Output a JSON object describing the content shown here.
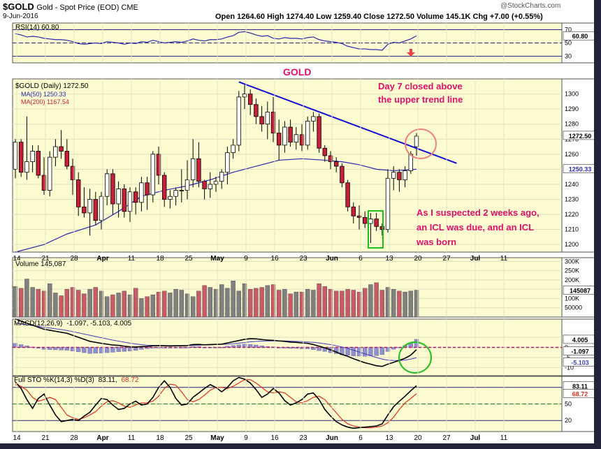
{
  "header": {
    "symbol": "$GOLD",
    "description": "Gold - Spot Price (EOD)  CME",
    "date": "9-Jun-2016",
    "watermark": "@StockCharts.com",
    "quote": "Open 1264.60  High 1274.40  Low 1259.40  Close 1272.50  Volume 145.1K  Chg +7.00 (+0.55%)"
  },
  "colors": {
    "panel_bg": "#fdfbd0",
    "up": "#ffffff",
    "down": "#c81e3c",
    "ma50": "#2a2ab0",
    "ma200": "#c81e3c",
    "trend": "#1010d0",
    "annotation": "#e0106a",
    "vol_up": "#808080",
    "vol_down": "#c85a6a"
  },
  "annotations": {
    "gold_label": "GOLD",
    "day7_line1": "Day 7 closed above",
    "day7_line2": "the upper trend line",
    "icl_line1": "As I suspected 2 weeks ago,",
    "icl_line2": "an ICL was due, and an ICL",
    "icl_line3": "was born"
  },
  "panels": {
    "rsi": {
      "label": "RSI(14) 60.80",
      "value_badge": "60.80"
    },
    "price": {
      "label": "$GOLD (Daily) 1272.50",
      "ma50_label": "MA(50) 1250.33",
      "ma200_label": "MA(200) 1167.54",
      "last_badge": "1272.50",
      "ma_badge": "1250.33"
    },
    "volume": {
      "label": "Volume 145,087",
      "badge": "145087"
    },
    "macd": {
      "label_prefix": "MACD(12,26,9)",
      "label_vals": "-1.097, -5.103, 4.005",
      "badge1": "4.005",
      "badge2": "-1.097",
      "badge3": "-5.103"
    },
    "sto": {
      "label_prefix": "Full STO %K(14,3) %D(3)",
      "label_k": "83.11,",
      "label_d": "68.72",
      "badge_k": "83.11",
      "badge_d": "68.72"
    }
  },
  "chart_data": [
    {
      "type": "candlestick",
      "title": "$GOLD (Daily)",
      "x_tick_labels": [
        "14",
        "21",
        "28",
        "Apr",
        "11",
        "18",
        "25",
        "May",
        "9",
        "16",
        "23",
        "Jun",
        "6",
        "13",
        "20",
        "27",
        "Jul",
        "11"
      ],
      "ylim": [
        1195,
        1310
      ],
      "y_ticks": [
        1200,
        1210,
        1220,
        1230,
        1240,
        1250,
        1260,
        1270,
        1280,
        1290,
        1300
      ],
      "candles": [
        [
          1250,
          1270,
          1244,
          1268
        ],
        [
          1268,
          1270,
          1245,
          1248
        ],
        [
          1248,
          1285,
          1243,
          1255
        ],
        [
          1255,
          1266,
          1248,
          1262
        ],
        [
          1262,
          1266,
          1244,
          1246
        ],
        [
          1246,
          1258,
          1233,
          1236
        ],
        [
          1236,
          1262,
          1232,
          1258
        ],
        [
          1258,
          1270,
          1252,
          1265
        ],
        [
          1265,
          1276,
          1257,
          1262
        ],
        [
          1262,
          1270,
          1250,
          1252
        ],
        [
          1252,
          1257,
          1233,
          1243
        ],
        [
          1243,
          1248,
          1219,
          1225
        ],
        [
          1225,
          1238,
          1218,
          1221
        ],
        [
          1221,
          1237,
          1206,
          1230
        ],
        [
          1230,
          1235,
          1213,
          1216
        ],
        [
          1216,
          1235,
          1210,
          1232
        ],
        [
          1232,
          1250,
          1226,
          1247
        ],
        [
          1247,
          1250,
          1220,
          1227
        ],
        [
          1227,
          1242,
          1218,
          1237
        ],
        [
          1237,
          1240,
          1218,
          1222
        ],
        [
          1222,
          1238,
          1215,
          1235
        ],
        [
          1235,
          1238,
          1220,
          1228
        ],
        [
          1228,
          1245,
          1222,
          1241
        ],
        [
          1241,
          1245,
          1223,
          1233
        ],
        [
          1233,
          1262,
          1228,
          1260
        ],
        [
          1260,
          1265,
          1240,
          1246
        ],
        [
          1246,
          1248,
          1225,
          1230
        ],
        [
          1230,
          1236,
          1224,
          1232
        ],
        [
          1232,
          1238,
          1226,
          1236
        ],
        [
          1236,
          1250,
          1228,
          1236
        ],
        [
          1236,
          1256,
          1230,
          1243
        ],
        [
          1243,
          1270,
          1238,
          1257
        ],
        [
          1257,
          1268,
          1238,
          1242
        ],
        [
          1242,
          1243,
          1230,
          1237
        ],
        [
          1237,
          1248,
          1231,
          1240
        ],
        [
          1240,
          1245,
          1235,
          1242
        ],
        [
          1242,
          1250,
          1237,
          1248
        ],
        [
          1248,
          1265,
          1240,
          1261
        ],
        [
          1261,
          1270,
          1257,
          1266
        ],
        [
          1266,
          1302,
          1262,
          1298
        ],
        [
          1298,
          1306,
          1290,
          1300
        ],
        [
          1300,
          1303,
          1286,
          1293
        ],
        [
          1293,
          1297,
          1280,
          1285
        ],
        [
          1285,
          1292,
          1275,
          1280
        ],
        [
          1280,
          1295,
          1270,
          1288
        ],
        [
          1288,
          1298,
          1268,
          1274
        ],
        [
          1274,
          1283,
          1256,
          1266
        ],
        [
          1266,
          1282,
          1261,
          1278
        ],
        [
          1278,
          1283,
          1265,
          1268
        ],
        [
          1268,
          1278,
          1263,
          1273
        ],
        [
          1273,
          1280,
          1262,
          1266
        ],
        [
          1266,
          1285,
          1263,
          1282
        ],
        [
          1282,
          1288,
          1275,
          1285
        ],
        [
          1285,
          1287,
          1261,
          1264
        ],
        [
          1264,
          1266,
          1255,
          1259
        ],
        [
          1259,
          1262,
          1250,
          1255
        ],
        [
          1255,
          1258,
          1248,
          1252
        ],
        [
          1252,
          1254,
          1238,
          1241
        ],
        [
          1241,
          1243,
          1222,
          1225
        ],
        [
          1225,
          1228,
          1214,
          1219
        ],
        [
          1219,
          1226,
          1210,
          1218
        ],
        [
          1218,
          1222,
          1211,
          1214
        ],
        [
          1214,
          1221,
          1201,
          1217
        ],
        [
          1217,
          1221,
          1209,
          1212
        ],
        [
          1212,
          1214,
          1206,
          1210
        ],
        [
          1210,
          1250,
          1208,
          1244
        ],
        [
          1244,
          1252,
          1236,
          1248
        ],
        [
          1248,
          1250,
          1235,
          1243
        ],
        [
          1243,
          1252,
          1238,
          1249
        ],
        [
          1249,
          1262,
          1247,
          1260
        ],
        [
          1265,
          1274,
          1259,
          1272
        ]
      ],
      "ma50": [
        [
          0,
          1195
        ],
        [
          5,
          1200
        ],
        [
          9,
          1207
        ],
        [
          14,
          1213
        ],
        [
          18,
          1222
        ],
        [
          22,
          1232
        ],
        [
          26,
          1236
        ],
        [
          30,
          1239
        ],
        [
          34,
          1243
        ],
        [
          38,
          1248
        ],
        [
          42,
          1252
        ],
        [
          46,
          1256
        ],
        [
          50,
          1257
        ],
        [
          54,
          1256
        ],
        [
          57,
          1255
        ],
        [
          60,
          1253
        ],
        [
          63,
          1250
        ],
        [
          66,
          1249
        ],
        [
          70,
          1250
        ]
      ],
      "trend_line": [
        [
          39,
          1308
        ],
        [
          77,
          1254
        ]
      ],
      "volume": {
        "ylim": [
          0,
          320000
        ],
        "y_ticks": [
          "300K",
          "250K",
          "200K",
          "150K",
          "100K",
          "50000"
        ],
        "values": [
          165,
          155,
          205,
          160,
          150,
          140,
          180,
          130,
          115,
          150,
          160,
          145,
          125,
          150,
          160,
          140,
          110,
          120,
          130,
          140,
          120,
          155,
          100,
          110,
          120,
          135,
          140,
          130,
          150,
          145,
          125,
          110,
          140,
          170,
          160,
          150,
          175,
          155,
          195,
          140,
          180,
          150,
          155,
          160,
          170,
          175,
          145,
          150,
          125,
          135,
          135,
          150,
          145,
          180,
          165,
          150,
          140,
          140,
          150,
          145,
          135,
          155,
          175,
          185,
          145,
          160,
          150,
          140,
          135,
          140,
          145
        ]
      },
      "rsi": {
        "ylim": [
          20,
          80
        ],
        "y_ticks": [
          70,
          50,
          30
        ],
        "values": [
          64,
          62,
          59,
          60,
          59,
          57,
          56,
          55,
          55,
          54,
          52,
          49,
          48,
          49,
          50,
          49,
          52,
          51,
          50,
          48,
          50,
          49,
          52,
          51,
          54,
          52,
          50,
          51,
          52,
          51,
          53,
          56,
          54,
          53,
          55,
          55,
          56,
          59,
          61,
          66,
          67,
          65,
          62,
          60,
          61,
          57,
          56,
          58,
          57,
          57,
          56,
          58,
          59,
          55,
          53,
          52,
          51,
          49,
          45,
          43,
          41,
          41,
          40,
          40,
          39,
          48,
          51,
          50,
          53,
          56,
          60.8
        ]
      },
      "macd": {
        "ylim": [
          -14,
          14
        ],
        "y_ticks": [
          5,
          0,
          -5,
          -10
        ],
        "macd": [
          14,
          13,
          12,
          11,
          10,
          9,
          8.5,
          8,
          7.5,
          7,
          6,
          5,
          4,
          3,
          2.5,
          2,
          1.6,
          1.2,
          1,
          0.6,
          0.3,
          0.2,
          0.4,
          0.5,
          0.8,
          0.9,
          0.8,
          0.7,
          0.8,
          0.8,
          0.9,
          1.4,
          1.5,
          1.3,
          1.4,
          1.5,
          1.6,
          2.2,
          2.8,
          3.4,
          4,
          4.3,
          4.2,
          3.9,
          3.6,
          3.5,
          3.2,
          3,
          2.6,
          2.5,
          2.2,
          2,
          1.4,
          0.6,
          -0.2,
          -1.2,
          -2.3,
          -3.5,
          -4.4,
          -5.6,
          -6.6,
          -7.6,
          -8.3,
          -9.1,
          -9.4,
          -8.3,
          -7.4,
          -6.4,
          -5.4,
          -3.8,
          -1.1
        ],
        "signal": [
          12,
          11.6,
          11.2,
          10.8,
          10.4,
          10,
          9.6,
          9.2,
          8.8,
          8.4,
          7.8,
          7.2,
          6.6,
          6,
          5.4,
          4.8,
          4.2,
          3.6,
          3.1,
          2.6,
          2.1,
          1.7,
          1.4,
          1.1,
          1,
          0.9,
          0.9,
          0.9,
          0.9,
          0.9,
          0.9,
          1,
          1.1,
          1.2,
          1.3,
          1.4,
          1.5,
          1.6,
          1.8,
          2.1,
          2.4,
          2.8,
          3,
          3.1,
          3.2,
          3.2,
          3.2,
          3.2,
          3.1,
          3,
          2.9,
          2.7,
          2.5,
          2.2,
          1.8,
          1.4,
          0.8,
          0.2,
          -0.5,
          -1.4,
          -2.3,
          -3.2,
          -4.1,
          -5,
          -5.8,
          -6.3,
          -6.5,
          -6.5,
          -6.3,
          -5.8,
          -5.1
        ]
      },
      "sto": {
        "ylim": [
          0,
          100
        ],
        "y_ticks": [
          80,
          50,
          20
        ],
        "k": [
          90,
          78,
          58,
          42,
          60,
          68,
          48,
          30,
          18,
          20,
          22,
          20,
          28,
          35,
          48,
          60,
          58,
          48,
          40,
          42,
          50,
          55,
          48,
          50,
          62,
          80,
          92,
          80,
          60,
          48,
          50,
          62,
          70,
          78,
          85,
          80,
          72,
          80,
          92,
          98,
          95,
          88,
          76,
          62,
          68,
          78,
          70,
          56,
          48,
          52,
          58,
          68,
          70,
          58,
          40,
          28,
          18,
          12,
          8,
          6,
          7,
          8,
          9,
          10,
          14,
          30,
          45,
          55,
          64,
          74,
          83.11
        ],
        "d": [
          85,
          82,
          75,
          62,
          55,
          58,
          62,
          58,
          44,
          30,
          25,
          22,
          25,
          30,
          36,
          46,
          54,
          56,
          52,
          46,
          44,
          48,
          52,
          52,
          55,
          64,
          78,
          86,
          84,
          72,
          58,
          54,
          58,
          66,
          75,
          80,
          80,
          78,
          82,
          88,
          94,
          94,
          88,
          80,
          72,
          70,
          72,
          70,
          62,
          54,
          52,
          56,
          62,
          64,
          58,
          46,
          34,
          22,
          14,
          10,
          8,
          7,
          7,
          8,
          10,
          16,
          26,
          40,
          52,
          60,
          68.72
        ]
      }
    }
  ]
}
